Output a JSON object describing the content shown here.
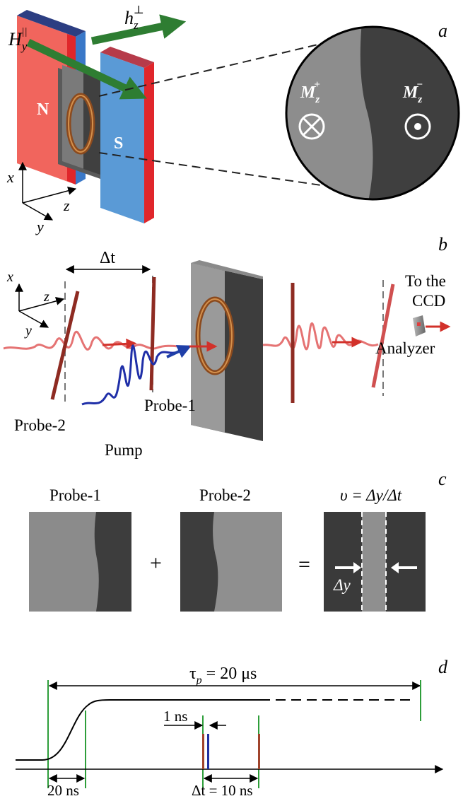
{
  "panel_labels": {
    "a": "a",
    "b": "b",
    "c": "c",
    "d": "d"
  },
  "panel_a": {
    "field_H_base": "H",
    "field_H_sub": "y",
    "field_H_sup": "||",
    "field_h_base": "h",
    "field_h_sub": "z",
    "field_h_sup": "⊥",
    "pole_north": "N",
    "pole_south": "S",
    "axis_x": "x",
    "axis_y": "y",
    "axis_z": "z",
    "domain_plus_base": "M",
    "domain_plus_sub": "z",
    "domain_plus_sup": "+",
    "domain_minus_base": "M",
    "domain_minus_sub": "z",
    "domain_minus_sup": "−"
  },
  "panel_b": {
    "delay_label": "Δt",
    "axis_x": "x",
    "axis_y": "y",
    "axis_z": "z",
    "ccd_line1": "To the",
    "ccd_line2": "CCD",
    "analyzer": "Analyzer",
    "probe2": "Probe-2",
    "probe1": "Probe-1",
    "pump": "Pump"
  },
  "panel_c": {
    "title1": "Probe-1",
    "title2": "Probe-2",
    "velocity_formula": "υ = Δy/Δt",
    "plus_sign": "+",
    "equals_sign": "=",
    "delta_y": "Δy"
  },
  "panel_d": {
    "tau_label": "τ",
    "tau_sub": "p",
    "tau_value": " = 20 μs",
    "one_ns": "1 ns",
    "twenty_ns": "20 ns",
    "dt_label": "Δt = 10 ns"
  },
  "colors": {
    "magnet_red": "#f0605a",
    "magnet_blue": "#5b9bd5",
    "arrow_green": "#2e7d32",
    "probe_red": "#c0392b",
    "pump_blue": "#1f2fa8",
    "timeline_green": "#2e9e3a",
    "domain_light": "#8d8d8d",
    "domain_dark": "#3f3f3f"
  }
}
